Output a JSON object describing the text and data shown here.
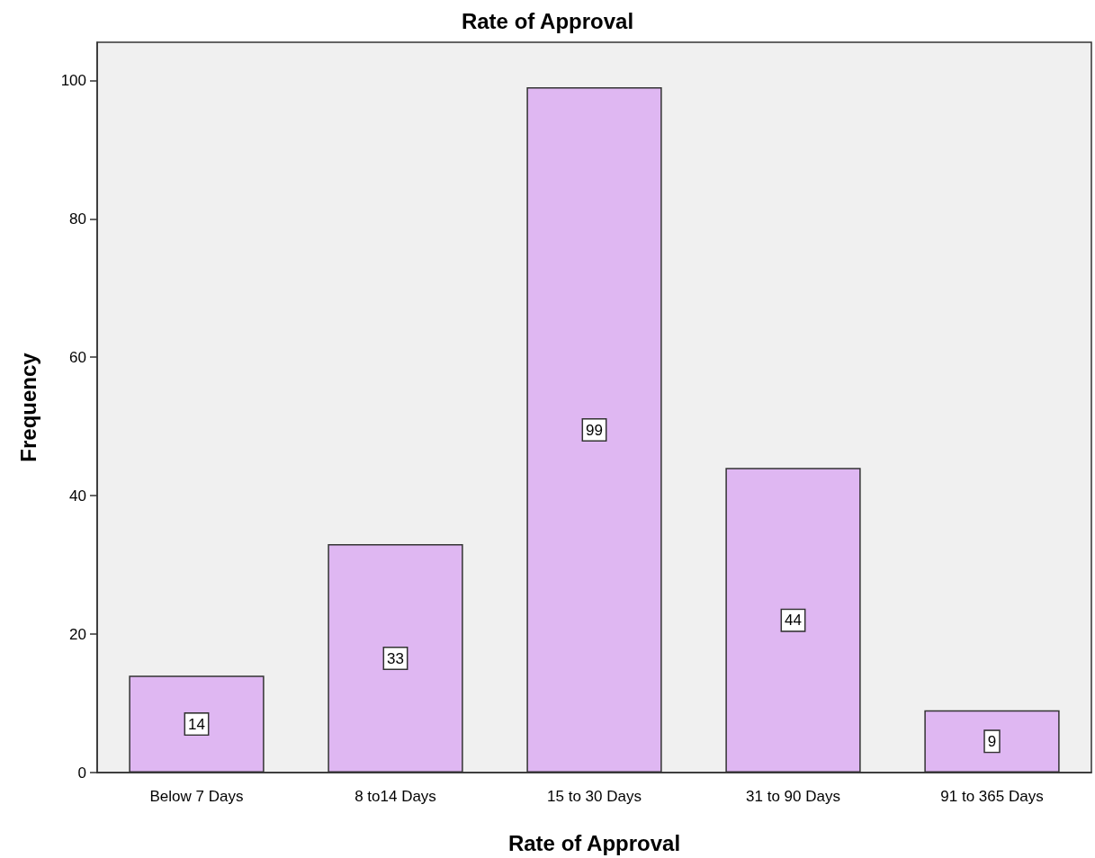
{
  "chart_data": {
    "type": "bar",
    "title": "Rate of Approval",
    "xlabel": "Rate of Approval",
    "ylabel": "Frequency",
    "categories": [
      "Below 7 Days",
      "8 to14 Days",
      "15 to 30 Days",
      "31 to 90 Days",
      "91 to 365 Days"
    ],
    "values": [
      14,
      33,
      99,
      44,
      9
    ],
    "color": "#dfb7f2",
    "ylim": [
      0,
      105.5
    ],
    "yticks": [
      0,
      20,
      40,
      60,
      80,
      100
    ],
    "grid": false,
    "data_labels": true
  }
}
